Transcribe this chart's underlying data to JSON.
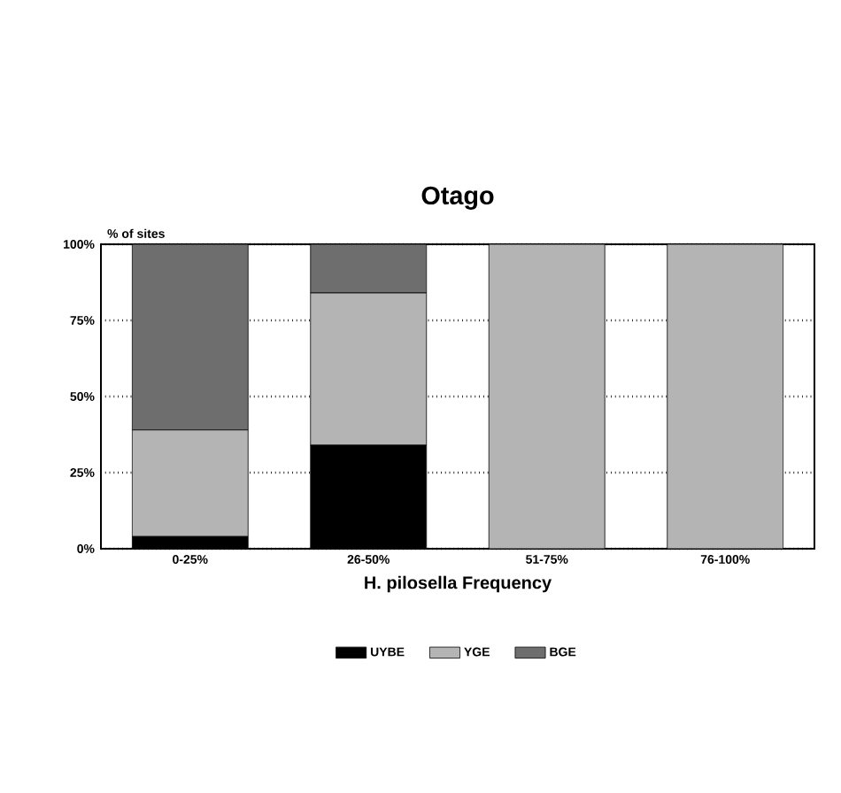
{
  "chart_data": {
    "type": "bar",
    "stacked": true,
    "title": "Otago",
    "xlabel": "H. pilosella Frequency",
    "ylabel": "% of sites",
    "categories": [
      "0-25%",
      "26-50%",
      "51-75%",
      "76-100%"
    ],
    "series": [
      {
        "name": "UYBE",
        "color": "#000000",
        "values": [
          4,
          34,
          0,
          0
        ]
      },
      {
        "name": "YGE",
        "color": "#b4b4b4",
        "values": [
          35,
          50,
          100,
          100
        ]
      },
      {
        "name": "BGE",
        "color": "#6e6e6e",
        "values": [
          61,
          16,
          0,
          0
        ]
      }
    ],
    "ylim": [
      0,
      100
    ],
    "yticks": [
      {
        "value": 0,
        "label": "0%"
      },
      {
        "value": 25,
        "label": "25%"
      },
      {
        "value": 50,
        "label": "50%"
      },
      {
        "value": 75,
        "label": "75%"
      },
      {
        "value": 100,
        "label": "100%"
      }
    ],
    "grid": "y",
    "legend": "bottom"
  }
}
